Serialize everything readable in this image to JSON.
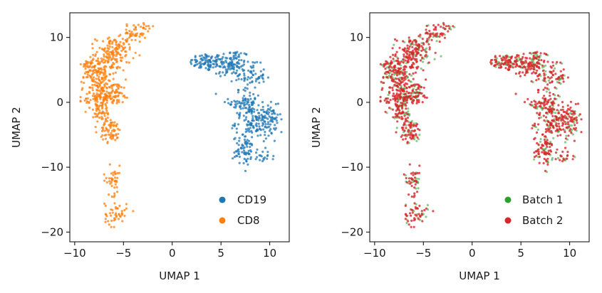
{
  "chart_data": [
    {
      "type": "scatter",
      "xlabel": "UMAP 1",
      "ylabel": "UMAP 2",
      "xlim": [
        -10.5,
        12
      ],
      "ylim": [
        -21.5,
        13.8
      ],
      "xticks": [
        -10,
        -5,
        0,
        5,
        10
      ],
      "yticks": [
        10,
        0,
        -10,
        -20
      ],
      "legend_placement": "lower-right",
      "series": [
        {
          "name": "CD19",
          "color": "#1f77b4",
          "x_range": [
            1.7,
            11.2
          ],
          "y_range": [
            -11.1,
            8.6
          ]
        },
        {
          "name": "CD8",
          "color": "#ff7f0e",
          "x_range": [
            -9.4,
            -1.8
          ],
          "y_range": [
            -19.7,
            12.2
          ]
        }
      ]
    },
    {
      "type": "scatter",
      "xlabel": "UMAP 1",
      "ylabel": "UMAP 2",
      "xlim": [
        -10.5,
        12
      ],
      "ylim": [
        -21.5,
        13.8
      ],
      "xticks": [
        -10,
        -5,
        0,
        5,
        10
      ],
      "yticks": [
        10,
        0,
        -10,
        -20
      ],
      "legend_placement": "lower-right",
      "series": [
        {
          "name": "Batch 1",
          "color": "#2ca02c"
        },
        {
          "name": "Batch 2",
          "color": "#d62728"
        }
      ]
    }
  ]
}
